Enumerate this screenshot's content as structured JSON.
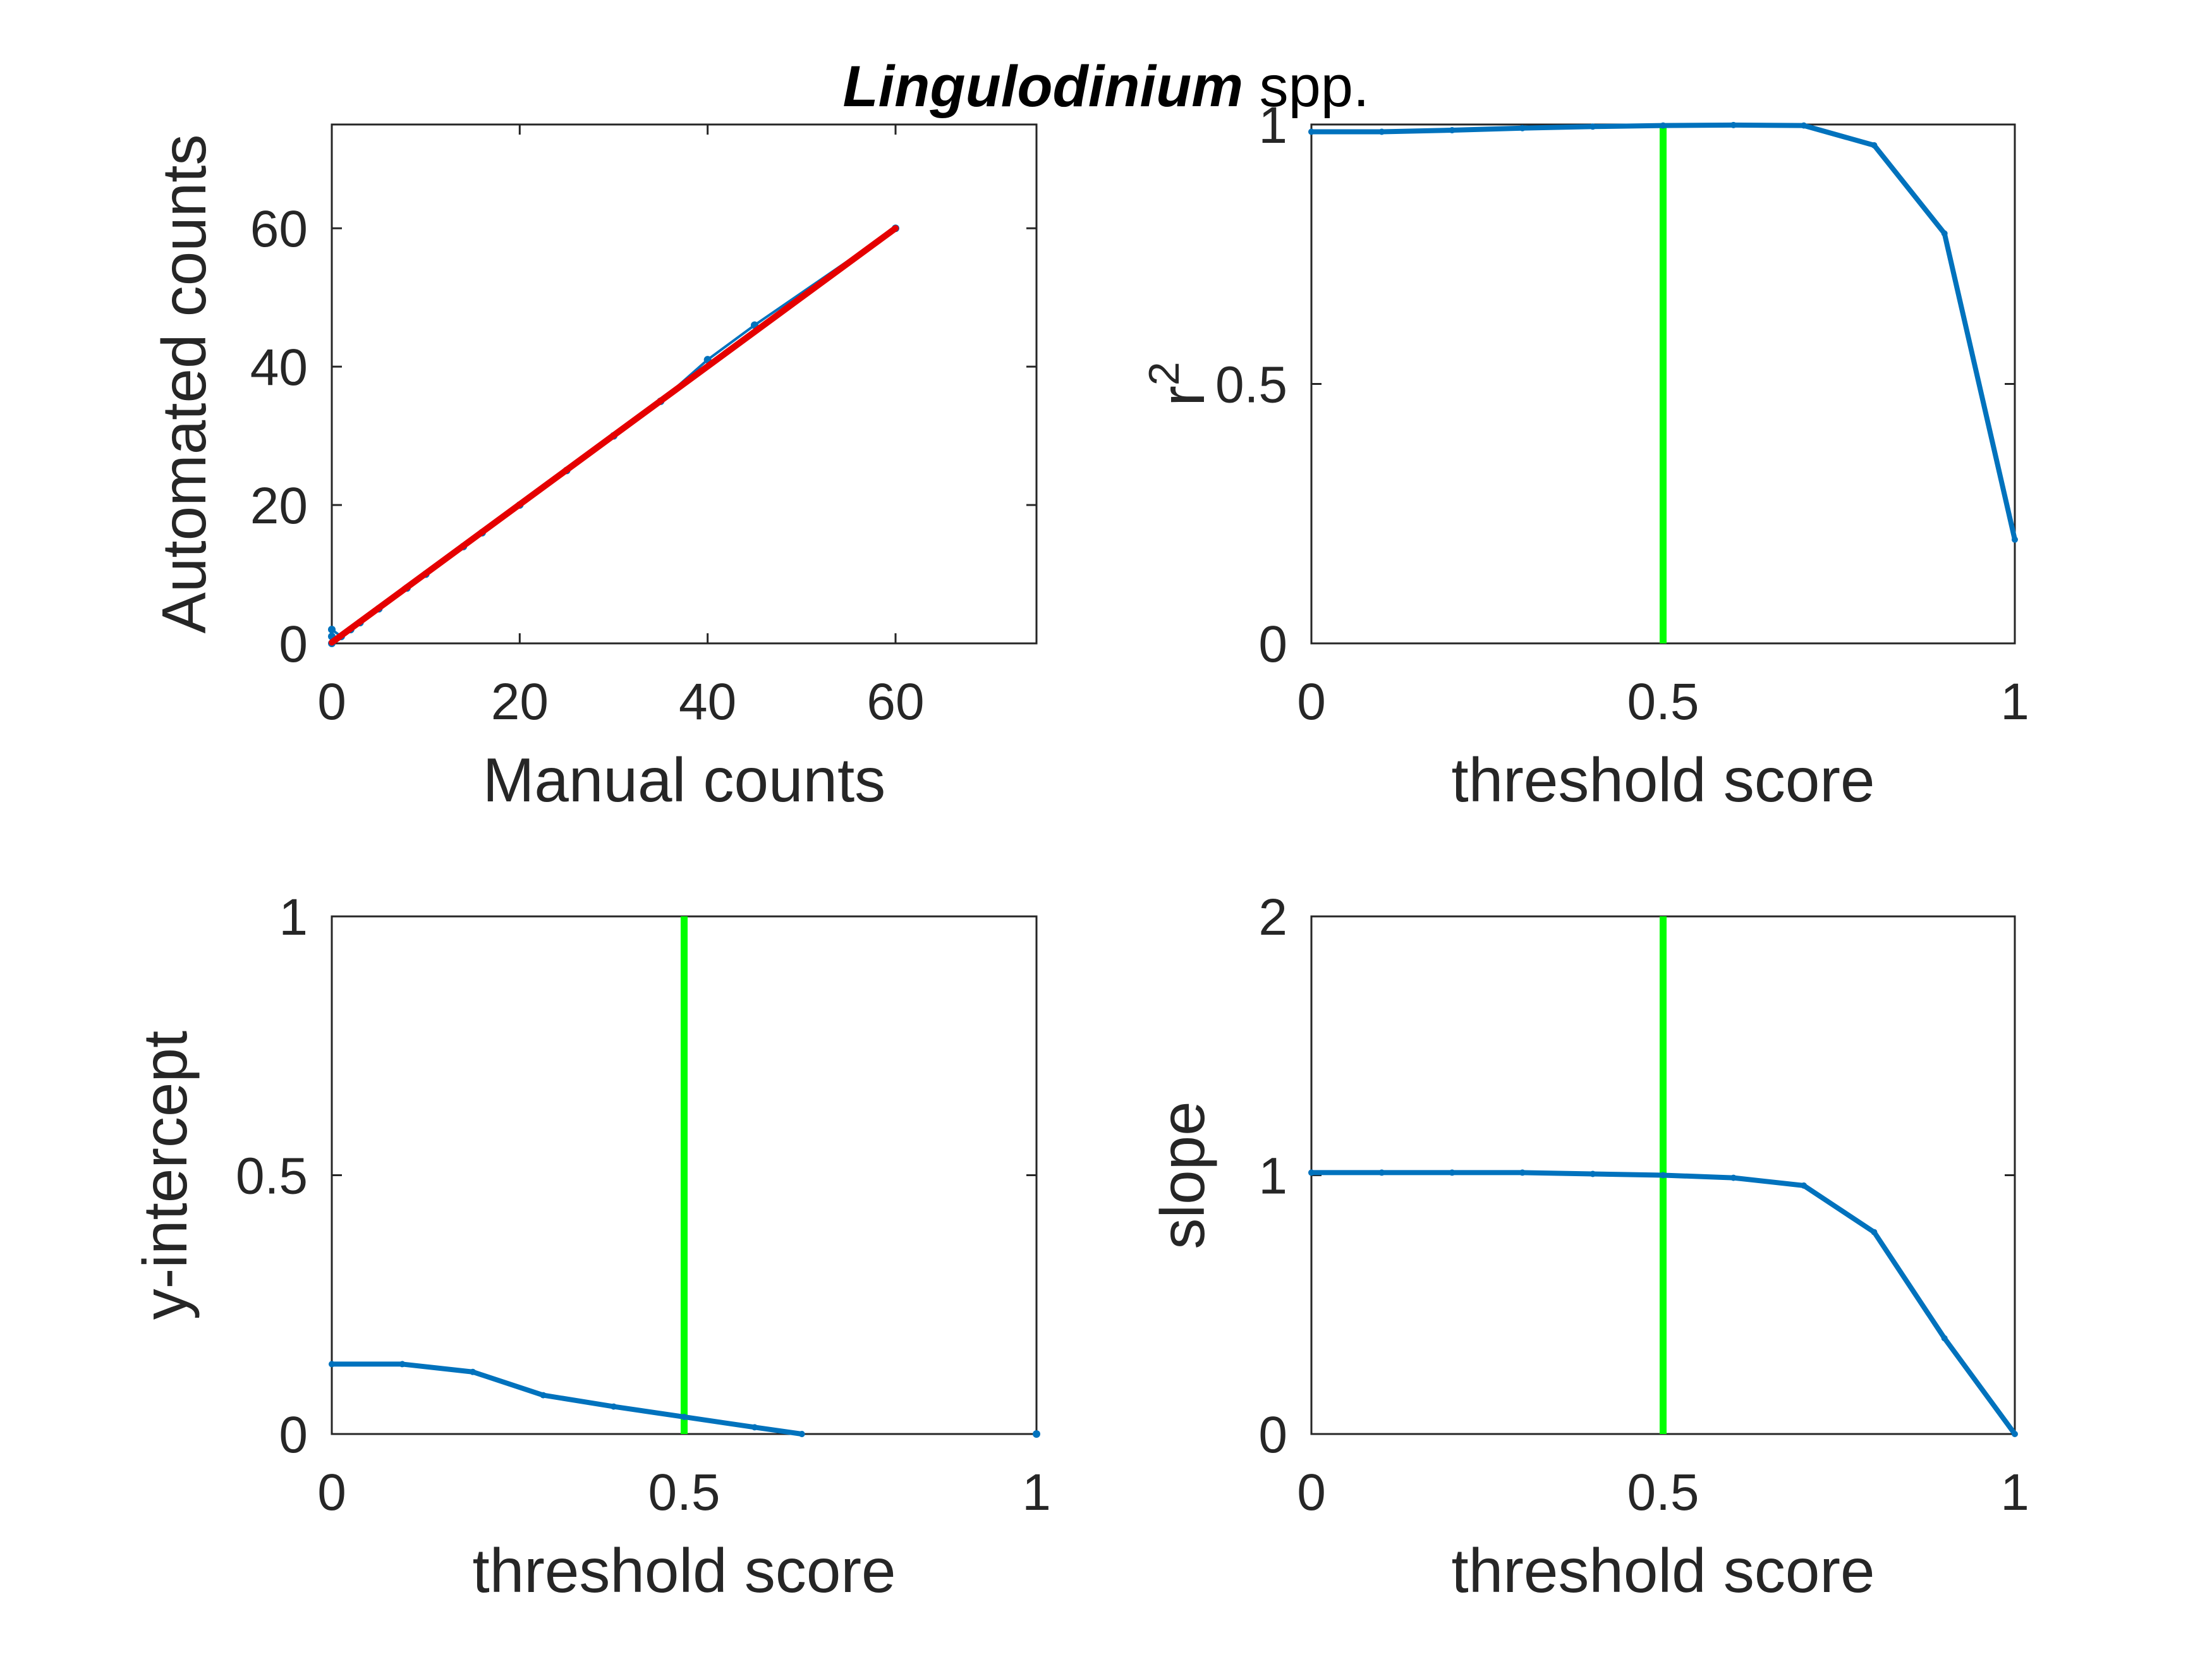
{
  "title": {
    "species": "Lingulodinium",
    "suffix": " spp."
  },
  "colors": {
    "series": "#0072BD",
    "fit": "#E50000",
    "threshold": "#00FF00",
    "axis": "#262626"
  },
  "chart_data": [
    {
      "id": "scatter",
      "type": "scatter",
      "xlabel": "Manual counts",
      "ylabel": "Automated counts",
      "xlim": [
        0,
        75
      ],
      "ylim": [
        0,
        75
      ],
      "xticks": [
        0,
        20,
        40,
        60
      ],
      "yticks": [
        0,
        20,
        40,
        60
      ],
      "xticklabels": [
        "0",
        "20",
        "40",
        "60"
      ],
      "yticklabels": [
        "0",
        "20",
        "40",
        "60"
      ],
      "points": [
        [
          0,
          0
        ],
        [
          0,
          1
        ],
        [
          0,
          2
        ],
        [
          1,
          1
        ],
        [
          2,
          2
        ],
        [
          3,
          3
        ],
        [
          5,
          5
        ],
        [
          8,
          8
        ],
        [
          10,
          10
        ],
        [
          14,
          14
        ],
        [
          16,
          16
        ],
        [
          20,
          20
        ],
        [
          25,
          25
        ],
        [
          30,
          30
        ],
        [
          35,
          35
        ],
        [
          40,
          41
        ],
        [
          45,
          46
        ],
        [
          60,
          60
        ]
      ],
      "fit_line": {
        "x": [
          0,
          60
        ],
        "y": [
          0.13,
          60.0
        ]
      }
    },
    {
      "id": "r2",
      "type": "line",
      "xlabel": "threshold score",
      "ylabel": "r",
      "ylabel_sup": "2",
      "xlim": [
        0,
        1
      ],
      "ylim": [
        0,
        1
      ],
      "xticks": [
        0,
        0.5,
        1
      ],
      "yticks": [
        0,
        0.5,
        1
      ],
      "xticklabels": [
        "0",
        "0.5",
        "1"
      ],
      "yticklabels": [
        "0",
        "0.5",
        "1"
      ],
      "x": [
        0,
        0.1,
        0.2,
        0.3,
        0.4,
        0.5,
        0.6,
        0.7,
        0.8,
        0.9,
        1.0
      ],
      "y": [
        0.986,
        0.986,
        0.989,
        0.993,
        0.996,
        0.998,
        0.999,
        0.998,
        0.96,
        0.79,
        0.2
      ],
      "threshold": 0.5
    },
    {
      "id": "intercept",
      "type": "line",
      "xlabel": "threshold score",
      "ylabel": "y-intercept",
      "xlim": [
        0,
        1
      ],
      "ylim": [
        0,
        1
      ],
      "xticks": [
        0,
        0.5,
        1
      ],
      "yticks": [
        0,
        0.5,
        1
      ],
      "xticklabels": [
        "0",
        "0.5",
        "1"
      ],
      "yticklabels": [
        "0",
        "0.5",
        "1"
      ],
      "x": [
        0,
        0.1,
        0.2,
        0.3,
        0.4,
        0.5,
        0.6,
        0.667
      ],
      "y": [
        0.135,
        0.135,
        0.12,
        0.075,
        0.053,
        0.033,
        0.013,
        0.0
      ],
      "extra_points": [
        [
          1.0,
          0.0
        ]
      ],
      "threshold": 0.5
    },
    {
      "id": "slope",
      "type": "line",
      "xlabel": "threshold score",
      "ylabel": "slope",
      "xlim": [
        0,
        1
      ],
      "ylim": [
        0,
        2
      ],
      "xticks": [
        0,
        0.5,
        1
      ],
      "yticks": [
        0,
        1,
        2
      ],
      "xticklabels": [
        "0",
        "0.5",
        "1"
      ],
      "yticklabels": [
        "0",
        "1",
        "2"
      ],
      "x": [
        0,
        0.1,
        0.2,
        0.3,
        0.4,
        0.5,
        0.6,
        0.7,
        0.8,
        0.9,
        1.0
      ],
      "y": [
        1.01,
        1.01,
        1.01,
        1.01,
        1.005,
        1.0,
        0.99,
        0.96,
        0.78,
        0.37,
        0.0
      ],
      "threshold": 0.5
    }
  ]
}
